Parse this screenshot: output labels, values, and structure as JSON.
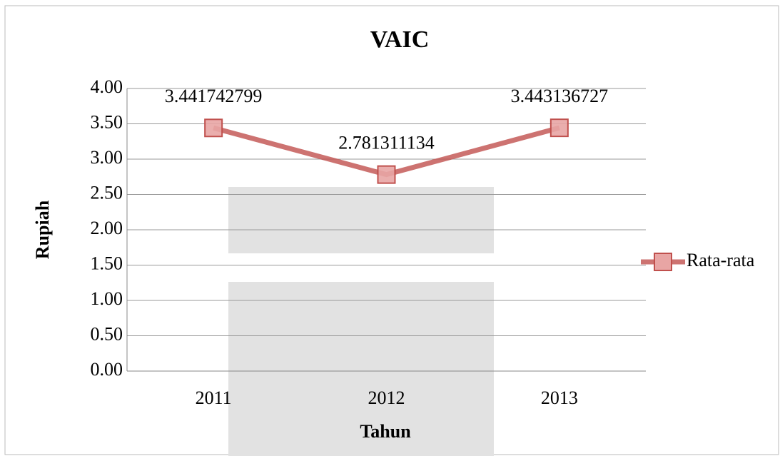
{
  "chart_data": {
    "type": "line",
    "title": "VAIC",
    "xlabel": "Tahun",
    "ylabel": "Rupiah",
    "categories": [
      "2011",
      "2012",
      "2013"
    ],
    "series": [
      {
        "name": "Rata-rata",
        "color": "#c0504d",
        "values": [
          3.441742799,
          2.781311134,
          3.443136727
        ]
      }
    ],
    "ylim": [
      0,
      4
    ],
    "yticks": [
      {
        "value": 0,
        "label": "0.00"
      },
      {
        "value": 0.5,
        "label": "0.50"
      },
      {
        "value": 1,
        "label": "1.00"
      },
      {
        "value": 1.5,
        "label": "1.50"
      },
      {
        "value": 2,
        "label": "2.00"
      },
      {
        "value": 2.5,
        "label": "2.50"
      },
      {
        "value": 3,
        "label": "3.00"
      },
      {
        "value": 3.5,
        "label": "3.50"
      },
      {
        "value": 4,
        "label": "4.00"
      }
    ],
    "grid": true,
    "legend": "right"
  }
}
